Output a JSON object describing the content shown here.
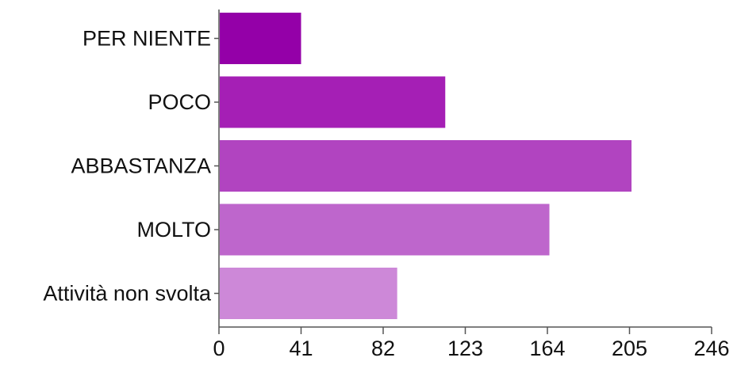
{
  "chart_data": {
    "type": "bar",
    "orientation": "horizontal",
    "title": "",
    "xlabel": "",
    "ylabel": "",
    "categories": [
      "PER NIENTE",
      "POCO",
      "ABBASTANZA",
      "MOLTO",
      "Attività non svolta"
    ],
    "values": [
      41,
      113,
      206,
      165,
      89
    ],
    "bar_colors": [
      "#9400a8",
      "#a51fb5",
      "#b144c0",
      "#be66cc",
      "#cd88d8"
    ],
    "xlim": [
      0,
      246
    ],
    "x_ticks": [
      0,
      41,
      82,
      123,
      164,
      205,
      246
    ],
    "x_tick_labels": [
      "0",
      "41",
      "82",
      "123",
      "164",
      "205",
      "246"
    ],
    "grid": false,
    "legend": "none"
  }
}
